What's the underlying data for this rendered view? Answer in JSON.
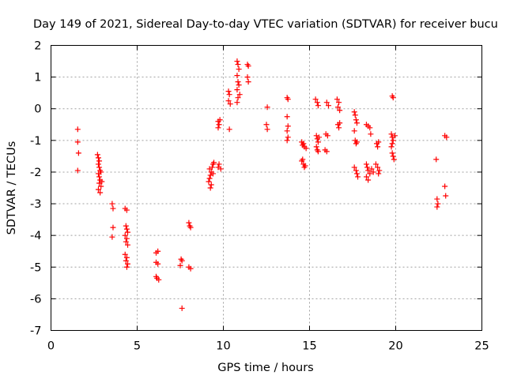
{
  "chart_data": {
    "type": "scatter",
    "title": "Day 149 of 2021, Sidereal Day-to-day VTEC variation (SDTVAR) for receiver bucu",
    "xlabel": "GPS time / hours",
    "ylabel": "SDTVAR / TECUs",
    "xlim": [
      0,
      25
    ],
    "ylim": [
      -7,
      2
    ],
    "xticks": [
      0,
      5,
      10,
      15,
      20,
      25
    ],
    "yticks": [
      -7,
      -6,
      -5,
      -4,
      -3,
      -2,
      -1,
      0,
      1,
      2
    ],
    "grid": true,
    "marker": "plus",
    "color": "#ff0000",
    "points": [
      [
        1.55,
        -0.65
      ],
      [
        1.55,
        -1.05
      ],
      [
        1.6,
        -1.4
      ],
      [
        1.55,
        -1.95
      ],
      [
        2.7,
        -1.45
      ],
      [
        2.75,
        -1.55
      ],
      [
        2.8,
        -1.65
      ],
      [
        2.75,
        -1.75
      ],
      [
        2.8,
        -1.85
      ],
      [
        2.85,
        -1.95
      ],
      [
        2.75,
        -2.05
      ],
      [
        2.8,
        -2.15
      ],
      [
        2.85,
        -2.25
      ],
      [
        2.8,
        -2.35
      ],
      [
        2.9,
        -2.45
      ],
      [
        2.75,
        -2.55
      ],
      [
        2.85,
        -2.65
      ],
      [
        2.9,
        -2.0
      ],
      [
        2.95,
        -2.3
      ],
      [
        3.55,
        -3.0
      ],
      [
        3.6,
        -3.15
      ],
      [
        3.6,
        -3.75
      ],
      [
        3.55,
        -4.05
      ],
      [
        4.3,
        -3.15
      ],
      [
        4.4,
        -3.2
      ],
      [
        4.35,
        -3.7
      ],
      [
        4.4,
        -3.8
      ],
      [
        4.45,
        -3.9
      ],
      [
        4.3,
        -4.0
      ],
      [
        4.4,
        -4.1
      ],
      [
        4.35,
        -4.2
      ],
      [
        4.45,
        -4.3
      ],
      [
        4.3,
        -4.6
      ],
      [
        4.4,
        -4.7
      ],
      [
        4.35,
        -4.8
      ],
      [
        4.45,
        -4.9
      ],
      [
        4.4,
        -5.0
      ],
      [
        6.1,
        -4.55
      ],
      [
        6.2,
        -4.5
      ],
      [
        6.1,
        -4.85
      ],
      [
        6.2,
        -4.9
      ],
      [
        6.1,
        -5.3
      ],
      [
        6.15,
        -5.35
      ],
      [
        6.25,
        -5.4
      ],
      [
        7.55,
        -4.75
      ],
      [
        7.6,
        -4.8
      ],
      [
        7.5,
        -4.95
      ],
      [
        7.6,
        -6.3
      ],
      [
        8.0,
        -3.6
      ],
      [
        8.05,
        -3.7
      ],
      [
        8.1,
        -3.75
      ],
      [
        8.0,
        -5.0
      ],
      [
        8.1,
        -5.05
      ],
      [
        9.15,
        -2.3
      ],
      [
        9.2,
        -2.2
      ],
      [
        9.25,
        -2.1
      ],
      [
        9.3,
        -2.0
      ],
      [
        9.2,
        -1.9
      ],
      [
        9.35,
        -1.85
      ],
      [
        9.4,
        -1.75
      ],
      [
        9.3,
        -2.4
      ],
      [
        9.25,
        -2.5
      ],
      [
        9.45,
        -1.7
      ],
      [
        9.4,
        -2.05
      ],
      [
        9.7,
        -0.4
      ],
      [
        9.75,
        -0.5
      ],
      [
        9.8,
        -0.35
      ],
      [
        9.7,
        -0.6
      ],
      [
        9.75,
        -1.75
      ],
      [
        9.85,
        -1.9
      ],
      [
        9.7,
        -1.85
      ],
      [
        10.3,
        0.55
      ],
      [
        10.35,
        0.45
      ],
      [
        10.3,
        0.25
      ],
      [
        10.4,
        0.15
      ],
      [
        10.35,
        -0.65
      ],
      [
        10.8,
        1.5
      ],
      [
        10.85,
        1.4
      ],
      [
        10.9,
        1.25
      ],
      [
        10.8,
        1.05
      ],
      [
        10.85,
        0.85
      ],
      [
        10.9,
        0.75
      ],
      [
        10.8,
        0.6
      ],
      [
        10.95,
        0.45
      ],
      [
        10.85,
        0.35
      ],
      [
        10.8,
        0.2
      ],
      [
        11.4,
        1.4
      ],
      [
        11.45,
        1.35
      ],
      [
        11.4,
        1.0
      ],
      [
        11.45,
        0.85
      ],
      [
        12.55,
        0.05
      ],
      [
        12.5,
        -0.5
      ],
      [
        12.55,
        -0.65
      ],
      [
        13.7,
        0.35
      ],
      [
        13.75,
        0.3
      ],
      [
        13.7,
        -0.25
      ],
      [
        13.75,
        -0.55
      ],
      [
        13.7,
        -0.7
      ],
      [
        13.75,
        -0.9
      ],
      [
        13.7,
        -1.0
      ],
      [
        14.55,
        -1.05
      ],
      [
        14.6,
        -1.15
      ],
      [
        14.7,
        -1.2
      ],
      [
        14.65,
        -1.1
      ],
      [
        14.8,
        -1.25
      ],
      [
        14.55,
        -1.65
      ],
      [
        14.65,
        -1.75
      ],
      [
        14.7,
        -1.85
      ],
      [
        14.6,
        -1.6
      ],
      [
        14.75,
        -1.8
      ],
      [
        15.35,
        0.3
      ],
      [
        15.45,
        0.2
      ],
      [
        15.5,
        0.1
      ],
      [
        15.4,
        -0.85
      ],
      [
        15.45,
        -0.95
      ],
      [
        15.5,
        -1.05
      ],
      [
        15.4,
        -1.2
      ],
      [
        15.45,
        -1.3
      ],
      [
        15.5,
        -1.35
      ],
      [
        15.55,
        -0.9
      ],
      [
        15.9,
        -1.3
      ],
      [
        16.0,
        -1.35
      ],
      [
        15.95,
        -0.8
      ],
      [
        16.05,
        -0.85
      ],
      [
        16.0,
        0.2
      ],
      [
        16.1,
        0.1
      ],
      [
        16.6,
        0.3
      ],
      [
        16.7,
        0.2
      ],
      [
        16.65,
        0.05
      ],
      [
        16.75,
        -0.05
      ],
      [
        16.65,
        -0.5
      ],
      [
        16.7,
        -0.6
      ],
      [
        16.75,
        -0.45
      ],
      [
        17.6,
        -0.1
      ],
      [
        17.65,
        -0.2
      ],
      [
        17.7,
        -0.35
      ],
      [
        17.75,
        -0.45
      ],
      [
        17.6,
        -0.7
      ],
      [
        17.65,
        -1.0
      ],
      [
        17.7,
        -1.1
      ],
      [
        17.75,
        -1.05
      ],
      [
        17.6,
        -1.85
      ],
      [
        17.7,
        -1.95
      ],
      [
        17.75,
        -2.05
      ],
      [
        17.8,
        -2.15
      ],
      [
        18.3,
        -0.5
      ],
      [
        18.4,
        -0.55
      ],
      [
        18.5,
        -0.6
      ],
      [
        18.55,
        -0.8
      ],
      [
        18.3,
        -1.75
      ],
      [
        18.35,
        -1.85
      ],
      [
        18.4,
        -1.95
      ],
      [
        18.5,
        -2.05
      ],
      [
        18.3,
        -2.15
      ],
      [
        18.4,
        -2.25
      ],
      [
        18.6,
        -1.9
      ],
      [
        18.7,
        -2.0
      ],
      [
        18.9,
        -1.1
      ],
      [
        18.95,
        -1.2
      ],
      [
        19.0,
        -1.05
      ],
      [
        18.85,
        -1.75
      ],
      [
        18.95,
        -1.85
      ],
      [
        19.0,
        -2.05
      ],
      [
        19.05,
        -1.95
      ],
      [
        19.8,
        0.4
      ],
      [
        19.85,
        0.35
      ],
      [
        19.75,
        -0.8
      ],
      [
        19.8,
        -0.9
      ],
      [
        19.85,
        -1.0
      ],
      [
        19.8,
        -1.1
      ],
      [
        19.75,
        -1.2
      ],
      [
        19.8,
        -1.4
      ],
      [
        19.85,
        -1.5
      ],
      [
        19.9,
        -1.6
      ],
      [
        19.95,
        -0.85
      ],
      [
        22.35,
        -1.6
      ],
      [
        22.4,
        -2.85
      ],
      [
        22.45,
        -3.0
      ],
      [
        22.4,
        -3.1
      ],
      [
        22.85,
        -0.85
      ],
      [
        22.95,
        -0.9
      ],
      [
        22.85,
        -2.45
      ],
      [
        22.9,
        -2.75
      ]
    ]
  }
}
